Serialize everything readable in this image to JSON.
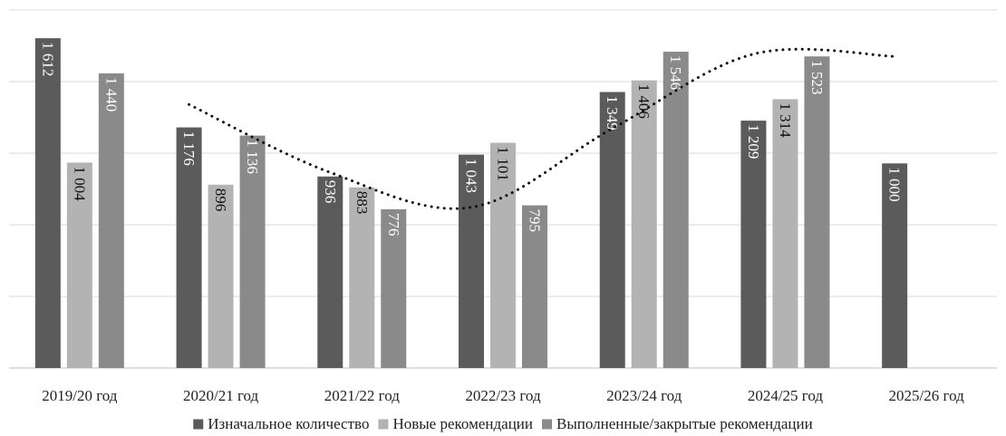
{
  "chart_data": {
    "type": "bar",
    "categories": [
      "2019/20 год",
      "2020/21 год",
      "2021/22 год",
      "2022/23 год",
      "2023/24 год",
      "2024/25 год",
      "2025/26 год"
    ],
    "series": [
      {
        "name": "Изначальное количество",
        "values": [
          1612,
          1176,
          936,
          1043,
          1349,
          1209,
          1000
        ],
        "labels": [
          "1 612",
          "1 176",
          "936",
          "1 043",
          "1 349",
          "1 209",
          "1 000"
        ],
        "color": "#5b5b5b"
      },
      {
        "name": "Новые рекомендации",
        "values": [
          1004,
          896,
          883,
          1101,
          1406,
          1314,
          null
        ],
        "labels": [
          "1 004",
          "896",
          "883",
          "1 101",
          "1 406",
          "1 314",
          ""
        ],
        "color": "#b3b3b3"
      },
      {
        "name": "Выполненные/закрытые рекомендации",
        "values": [
          1440,
          1136,
          776,
          795,
          1546,
          1523,
          null
        ],
        "labels": [
          "1 440",
          "1 136",
          "776",
          "795",
          "1 546",
          "1 523",
          ""
        ],
        "color": "#8a8a8a"
      }
    ],
    "trendline": {
      "type": "moving_average",
      "style": "dotted",
      "color": "#111111"
    },
    "ylim": [
      0,
      1750
    ],
    "y_grid_step": 350,
    "grid": true,
    "y_tick_labels_shown": false,
    "legend_position": "bottom",
    "title": "",
    "xlabel": "",
    "ylabel": ""
  }
}
